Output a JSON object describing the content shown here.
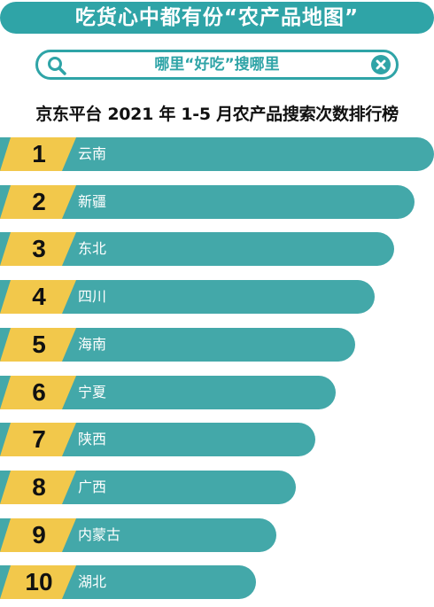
{
  "header": {
    "title": "吃货心中都有份“农产品地图”"
  },
  "search": {
    "query": "哪里“好吃”搜哪里",
    "icon": "search-icon",
    "clear_icon": "close-circle-icon"
  },
  "colors": {
    "teal": "#43a8a9",
    "banner": "#2fa4a7",
    "gold": "#f2c84b"
  },
  "chart_data": {
    "type": "bar",
    "orientation": "horizontal",
    "title": "京东平台 2021 年 1-5 月农产品搜索次数排行榜",
    "ranks": [
      "1",
      "2",
      "3",
      "4",
      "5",
      "6",
      "7",
      "8",
      "9",
      "10"
    ],
    "categories": [
      "云南",
      "新疆",
      "东北",
      "四川",
      "海南",
      "宁夏",
      "陕西",
      "广西",
      "内蒙古",
      "湖北"
    ]
  }
}
